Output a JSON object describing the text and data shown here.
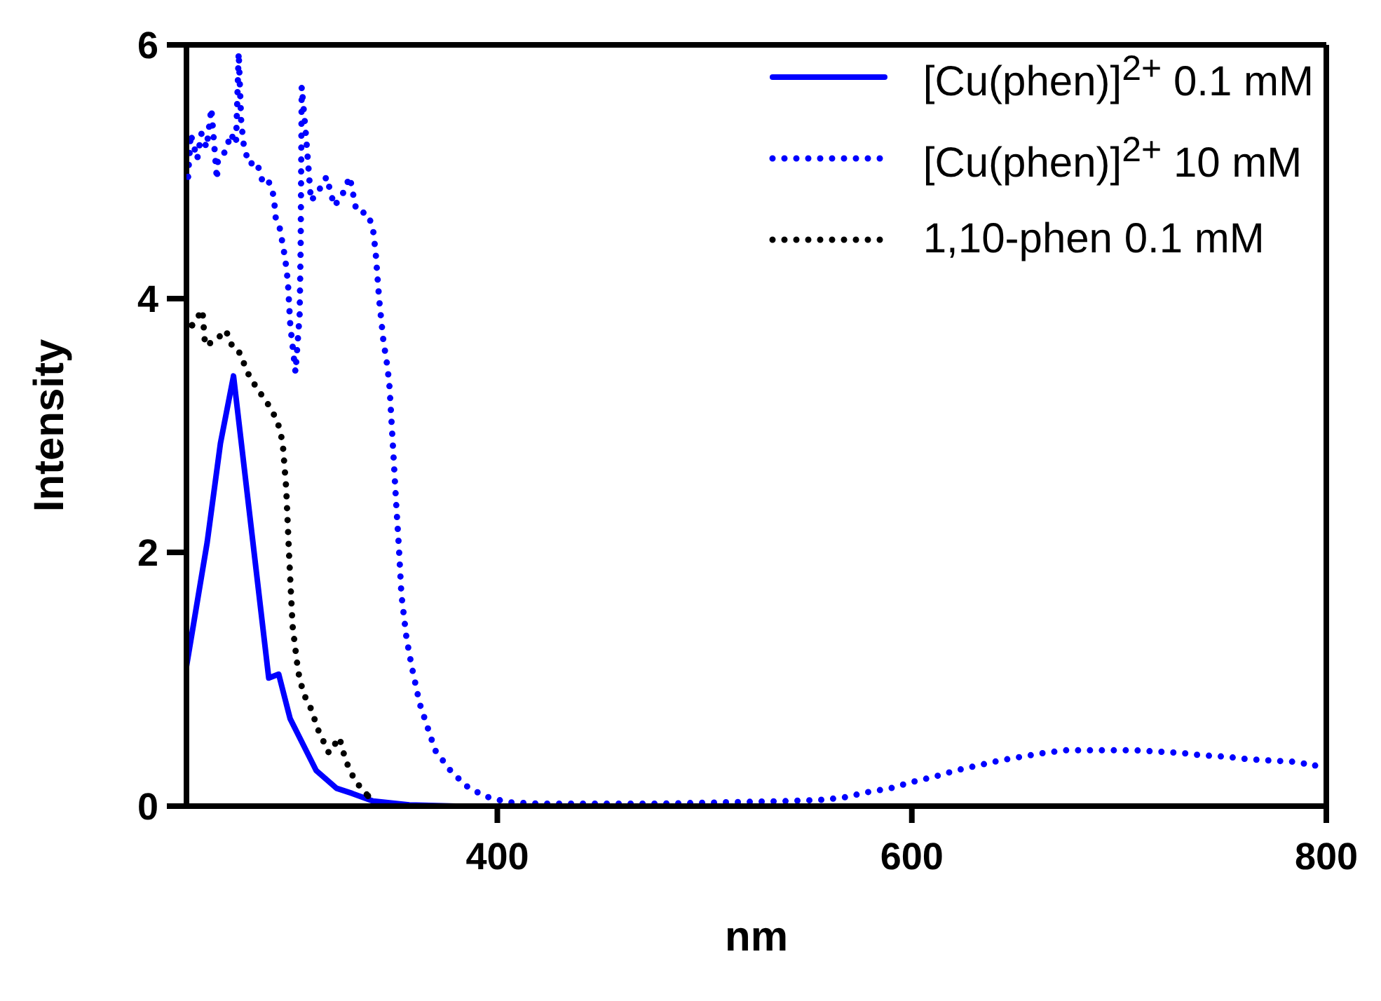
{
  "chart_data": {
    "type": "line",
    "xlabel": "nm",
    "ylabel": "Intensity",
    "xlim": [
      250,
      800
    ],
    "ylim": [
      0,
      6
    ],
    "xticks": [
      400,
      600,
      800
    ],
    "yticks": [
      0,
      2,
      4,
      6
    ],
    "legend": "top right",
    "marker": "none",
    "series": [
      {
        "name": "[Cu(phen)]$^{2+}$ 0.1 mM",
        "color": "#0000ff",
        "line_style": "solid",
        "x": [
          250,
          260,
          266.4,
          272.7,
          289.7,
          294.5,
          300,
          312.6,
          322.5,
          330,
          340,
          357.5,
          380,
          800
        ],
        "values": [
          1.1,
          2.08,
          2.86,
          3.39,
          1.01,
          1.04,
          0.69,
          0.28,
          0.14,
          0.1,
          0.04,
          0.01,
          0,
          0
        ]
      },
      {
        "name": "[Cu(phen)]$^{2+}$ 10 mM",
        "color": "#0000ff",
        "line_style": "dotted",
        "x": [
          250.7,
          251.5,
          252,
          255.2,
          257.2,
          259.7,
          262,
          264.7,
          265.2,
          268.9,
          271.4,
          273.9,
          275.2,
          276.4,
          277.7,
          280.2,
          283.9,
          286.4,
          288.9,
          292.1,
          293.1,
          295.1,
          297.6,
          298.9,
          300.1,
          302.6,
          304.6,
          305.1,
          305.6,
          307.6,
          310.1,
          313.8,
          317.6,
          321.3,
          325,
          328.8,
          332,
          337.5,
          340,
          341.3,
          343,
          345,
          347,
          348,
          348.7,
          350,
          351.2,
          352.5,
          353.7,
          356.2,
          358.7,
          362.5,
          370,
          377.4,
          384.9,
          393.6,
          404.9,
          420,
          450,
          480,
          510,
          540,
          557.3,
          567.8,
          578.6,
          589.6,
          600,
          610.5,
          621,
          631.8,
          642.6,
          653.2,
          664,
          674.4,
          685.7,
          696.5,
          707.7,
          718.2,
          729.5,
          740.2,
          751.2,
          762,
          772.8,
          784,
          794.6
        ],
        "values": [
          4.96,
          5.14,
          5.3,
          5.1,
          5.3,
          5.19,
          5.5,
          4.94,
          5.1,
          5.16,
          5.3,
          5.22,
          5.94,
          5.4,
          5.2,
          5.06,
          5.08,
          4.94,
          4.96,
          4.81,
          4.63,
          4.55,
          4.32,
          4.14,
          3.79,
          3.42,
          3.87,
          4.4,
          5.67,
          5.3,
          4.77,
          4.85,
          4.96,
          4.73,
          4.81,
          4.96,
          4.69,
          4.67,
          4.55,
          4.36,
          3.99,
          3.67,
          3.46,
          3.3,
          3.1,
          2.73,
          2.38,
          2.04,
          1.67,
          1.32,
          1.1,
          0.81,
          0.44,
          0.28,
          0.16,
          0.08,
          0.03,
          0.02,
          0.02,
          0.02,
          0.03,
          0.04,
          0.05,
          0.07,
          0.11,
          0.14,
          0.19,
          0.23,
          0.28,
          0.32,
          0.36,
          0.39,
          0.42,
          0.44,
          0.44,
          0.44,
          0.44,
          0.43,
          0.42,
          0.4,
          0.39,
          0.37,
          0.36,
          0.35,
          0.32
        ]
      },
      {
        "name": "1,10-phen 0.1 mM",
        "color": "#000000",
        "line_style": "dotted",
        "x": [
          252.7,
          257.7,
          259,
          264,
          269,
          272.7,
          276,
          279,
          283.7,
          288.9,
          293.8,
          296.4,
          298.1,
          299.6,
          301.2,
          303.9,
          306.4,
          310,
          313.8,
          318.7,
          323.8,
          326.8,
          331.3,
          337.6
        ],
        "values": [
          3.79,
          3.91,
          3.63,
          3.67,
          3.75,
          3.6,
          3.57,
          3.43,
          3.3,
          3.18,
          3.04,
          2.87,
          2.51,
          1.95,
          1.42,
          1.06,
          0.89,
          0.77,
          0.59,
          0.42,
          0.54,
          0.36,
          0.2,
          0.08
        ]
      }
    ]
  }
}
